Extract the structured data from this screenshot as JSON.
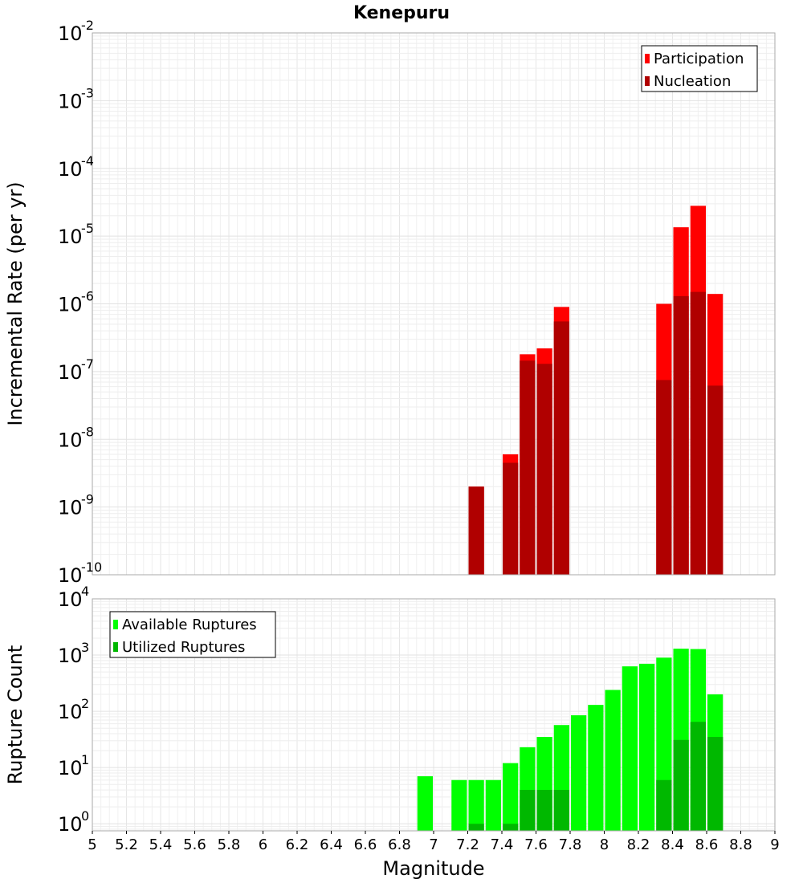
{
  "chart_data": [
    {
      "type": "bar",
      "title": "Kenepuru",
      "xlabel": "",
      "ylabel": "Incremental Rate (per yr)",
      "xlim": [
        5,
        9
      ],
      "ylim": [
        1e-10,
        0.01
      ],
      "yscale": "log",
      "grid": true,
      "legend_position": "top-right",
      "bin_width": 0.1,
      "y_ticks": [
        {
          "base": "10",
          "exp": "-10"
        },
        {
          "base": "10",
          "exp": "-9"
        },
        {
          "base": "10",
          "exp": "-8"
        },
        {
          "base": "10",
          "exp": "-7"
        },
        {
          "base": "10",
          "exp": "-6"
        },
        {
          "base": "10",
          "exp": "-5"
        },
        {
          "base": "10",
          "exp": "-4"
        },
        {
          "base": "10",
          "exp": "-3"
        },
        {
          "base": "10",
          "exp": "-2"
        }
      ],
      "series": [
        {
          "name": "Participation",
          "color": "#ff0000",
          "x": [
            7.25,
            7.45,
            7.55,
            7.65,
            7.75,
            8.35,
            8.45,
            8.55,
            8.65
          ],
          "values": [
            2e-09,
            6e-09,
            1.8e-07,
            2.2e-07,
            9e-07,
            1e-06,
            1.35e-05,
            2.8e-05,
            1.4e-06
          ]
        },
        {
          "name": "Nucleation",
          "color": "#b00000",
          "x": [
            7.25,
            7.45,
            7.55,
            7.65,
            7.75,
            8.35,
            8.45,
            8.55,
            8.65
          ],
          "values": [
            2e-09,
            4.5e-09,
            1.45e-07,
            1.3e-07,
            5.5e-07,
            7.5e-08,
            1.3e-06,
            1.5e-06,
            6.2e-08
          ]
        }
      ]
    },
    {
      "type": "bar",
      "title": "",
      "xlabel": "Magnitude",
      "ylabel": "Rupture Count",
      "xlim": [
        5,
        9
      ],
      "ylim": [
        0.75,
        10000
      ],
      "yscale": "log",
      "grid": true,
      "legend_position": "top-left",
      "bin_width": 0.1,
      "x_ticks": [
        "5",
        "5.2",
        "5.4",
        "5.6",
        "5.8",
        "6",
        "6.2",
        "6.4",
        "6.6",
        "6.8",
        "7",
        "7.2",
        "7.4",
        "7.6",
        "7.8",
        "8",
        "8.2",
        "8.4",
        "8.6",
        "8.8",
        "9"
      ],
      "y_ticks": [
        {
          "base": "10",
          "exp": "0"
        },
        {
          "base": "10",
          "exp": "1"
        },
        {
          "base": "10",
          "exp": "2"
        },
        {
          "base": "10",
          "exp": "3"
        },
        {
          "base": "10",
          "exp": "4"
        }
      ],
      "series": [
        {
          "name": "Available Ruptures",
          "color": "#00ff00",
          "x": [
            6.95,
            7.15,
            7.25,
            7.35,
            7.45,
            7.55,
            7.65,
            7.75,
            7.85,
            7.95,
            8.05,
            8.15,
            8.25,
            8.35,
            8.45,
            8.55,
            8.65
          ],
          "values": [
            7,
            6,
            6,
            6,
            12,
            23,
            35,
            57,
            85,
            130,
            240,
            630,
            700,
            900,
            1300,
            1280,
            200
          ]
        },
        {
          "name": "Utilized Ruptures",
          "color": "#00b800",
          "x": [
            7.25,
            7.45,
            7.55,
            7.65,
            7.75,
            8.35,
            8.45,
            8.55,
            8.65
          ],
          "values": [
            1,
            1,
            4,
            4,
            4,
            6,
            31,
            65,
            35
          ]
        }
      ]
    }
  ]
}
